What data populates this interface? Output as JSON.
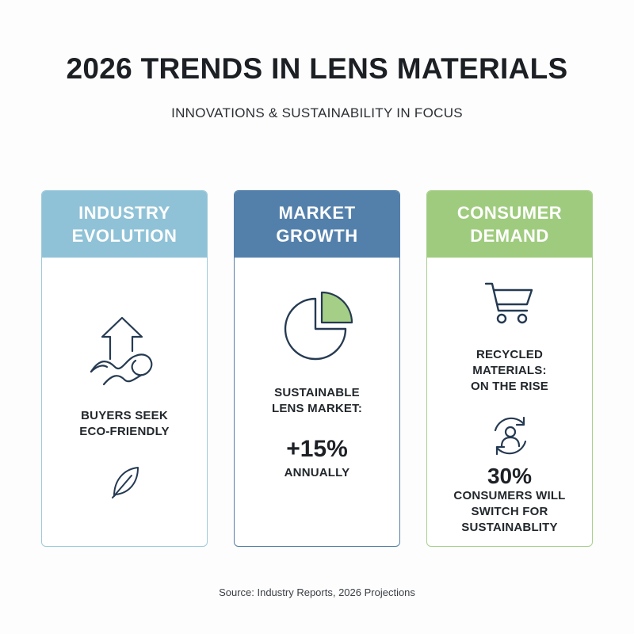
{
  "header": {
    "title": "2026 TRENDS IN LENS MATERIALS",
    "subtitle": "INNOVATIONS & SUSTAINABILITY IN FOCUS"
  },
  "cards": [
    {
      "header_lines": [
        "INDUSTRY",
        "EVOLUTION"
      ],
      "icon": "trend-arrow-up-icon",
      "text_lines": [
        "BUYERS SEEK",
        "ECO-FRIENDLY"
      ],
      "footer_icon": "leaf-icon",
      "accent": "#8fc2d7"
    },
    {
      "header_lines": [
        "MARKET",
        "GROWTH"
      ],
      "icon": "pie-chart-icon",
      "text_lines": [
        "SUSTAINABLE",
        "LENS MARKET:"
      ],
      "stat": "+15%",
      "stat_caption": "ANNUALLY",
      "accent": "#5380ab"
    },
    {
      "header_lines": [
        "CONSUMER",
        "DEMAND"
      ],
      "icon": "shopping-cart-icon",
      "text_lines": [
        "RECYCLED",
        "MATERIALS:",
        "ON THE RISE"
      ],
      "second_icon": "user-cycle-icon",
      "stat": "30%",
      "stat_caption_lines": [
        "CONSUMERS WILL",
        "SWITCH FOR",
        "SUSTAINABLITY"
      ],
      "accent": "#9fcb7e"
    }
  ],
  "footer": {
    "source": "Source: Industry Reports, 2026 Projections"
  }
}
